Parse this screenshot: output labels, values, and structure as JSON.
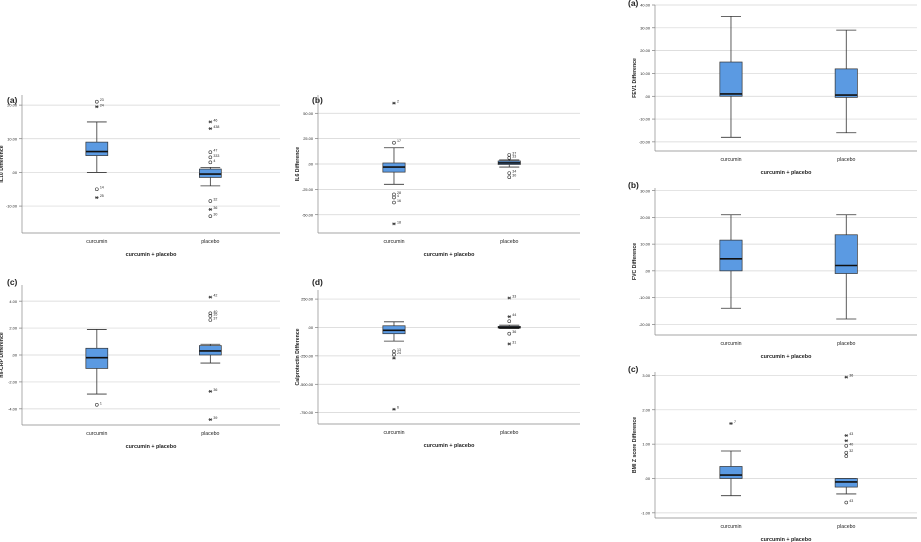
{
  "chart_data": [
    {
      "type": "boxplot",
      "id": "il10",
      "panel_label": "(a)",
      "ylabel": "IL10 Difference",
      "xlabel": "curcumin + placebo",
      "categories": [
        "curcumin",
        "placebo"
      ],
      "ylim": [
        -18,
        23
      ],
      "yticks": [
        -10,
        0,
        10,
        20
      ],
      "ytick_labels": [
        "-10.00",
        ".00",
        "10.00",
        "20.00"
      ],
      "boxes": [
        {
          "group": "curcumin",
          "whisker_low": 0.0,
          "q1": 5.0,
          "median": 6.2,
          "q3": 9.0,
          "whisker_high": 15.0,
          "outliers": [
            {
              "y": 21.0,
              "label": "23",
              "marker": "circle"
            },
            {
              "y": 19.5,
              "label": "24",
              "marker": "star"
            },
            {
              "y": -5.0,
              "label": "14",
              "marker": "circle"
            },
            {
              "y": -7.5,
              "label": "25",
              "marker": "star"
            }
          ]
        },
        {
          "group": "placebo",
          "whisker_low": -4.0,
          "q1": -1.5,
          "median": -0.5,
          "q3": 1.0,
          "whisker_high": 1.5,
          "outliers": [
            {
              "y": 15.0,
              "label": "46",
              "marker": "star"
            },
            {
              "y": 13.0,
              "label": "438",
              "marker": "star"
            },
            {
              "y": 6.0,
              "label": "47",
              "marker": "circle"
            },
            {
              "y": 4.5,
              "label": "333",
              "marker": "circle"
            },
            {
              "y": 3.0,
              "label": "4",
              "marker": "circle"
            },
            {
              "y": -8.5,
              "label": "32",
              "marker": "circle"
            },
            {
              "y": -11.0,
              "label": "36",
              "marker": "star"
            },
            {
              "y": -13.0,
              "label": "30",
              "marker": "circle"
            }
          ]
        }
      ]
    },
    {
      "type": "boxplot",
      "id": "il6",
      "panel_label": "(b)",
      "ylabel": "IL6 Difference",
      "xlabel": "curcumin + placebo",
      "categories": [
        "curcumin",
        "placebo"
      ],
      "ylim": [
        -68,
        68
      ],
      "yticks": [
        -50,
        -25,
        0,
        25,
        50
      ],
      "ytick_labels": [
        "-50.00",
        "-25.00",
        ".00",
        "25.00",
        "50.00"
      ],
      "boxes": [
        {
          "group": "curcumin",
          "whisker_low": -20.0,
          "q1": -8.0,
          "median": -3.0,
          "q3": 1.0,
          "whisker_high": 16.0,
          "outliers": [
            {
              "y": 60.0,
              "label": "2",
              "marker": "star"
            },
            {
              "y": 21.0,
              "label": "17",
              "marker": "circle"
            },
            {
              "y": -30.0,
              "label": "28",
              "marker": "circle"
            },
            {
              "y": -33.0,
              "label": "4",
              "marker": "circle"
            },
            {
              "y": -38.0,
              "label": "16",
              "marker": "circle"
            },
            {
              "y": -59.0,
              "label": "18",
              "marker": "star"
            }
          ]
        },
        {
          "group": "placebo",
          "whisker_low": -3.0,
          "q1": -0.5,
          "median": 1.0,
          "q3": 3.0,
          "whisker_high": 4.0,
          "outliers": [
            {
              "y": 9.0,
              "label": "37",
              "marker": "circle"
            },
            {
              "y": 6.0,
              "label": "33",
              "marker": "circle"
            },
            {
              "y": -9.0,
              "label": "34",
              "marker": "circle"
            },
            {
              "y": -13.0,
              "label": "30",
              "marker": "circle"
            }
          ]
        }
      ]
    },
    {
      "type": "boxplot",
      "id": "hscrp",
      "panel_label": "(c)",
      "ylabel": "hs-CRP Difference",
      "xlabel": "curcumin + placebo",
      "categories": [
        "curcumin",
        "placebo"
      ],
      "ylim": [
        -5.2,
        5.2
      ],
      "yticks": [
        -4,
        -2,
        0,
        2,
        4
      ],
      "ytick_labels": [
        "-4.00",
        "-2.00",
        ".00",
        "2.00",
        "4.00"
      ],
      "boxes": [
        {
          "group": "curcumin",
          "whisker_low": -2.9,
          "q1": -1.0,
          "median": -0.2,
          "q3": 0.5,
          "whisker_high": 1.9,
          "outliers": [
            {
              "y": -3.7,
              "label": "1",
              "marker": "circle"
            }
          ]
        },
        {
          "group": "placebo",
          "whisker_low": -0.6,
          "q1": 0.0,
          "median": 0.3,
          "q3": 0.7,
          "whisker_high": 0.8,
          "outliers": [
            {
              "y": 4.3,
              "label": "42",
              "marker": "star"
            },
            {
              "y": 3.1,
              "label": "40",
              "marker": "circle"
            },
            {
              "y": 2.9,
              "label": "35",
              "marker": "circle"
            },
            {
              "y": 2.6,
              "label": "37",
              "marker": "circle"
            },
            {
              "y": -2.7,
              "label": "36",
              "marker": "star"
            },
            {
              "y": -4.8,
              "label": "39",
              "marker": "star"
            }
          ]
        }
      ]
    },
    {
      "type": "boxplot",
      "id": "calprotectin",
      "panel_label": "(d)",
      "ylabel": "Calprotectin Difference",
      "xlabel": "curcumin + placebo",
      "categories": [
        "curcumin",
        "placebo"
      ],
      "ylim": [
        -850,
        330
      ],
      "yticks": [
        -750,
        -500,
        -250,
        0,
        250
      ],
      "ytick_labels": [
        "-750.00",
        "-500.00",
        "-250.00",
        ".00",
        "250.00"
      ],
      "boxes": [
        {
          "group": "curcumin",
          "whisker_low": -120,
          "q1": -55,
          "median": -25,
          "q3": 15,
          "whisker_high": 50,
          "outliers": [
            {
              "y": -210,
              "label": "13",
              "marker": "circle"
            },
            {
              "y": -240,
              "label": "24",
              "marker": "circle"
            },
            {
              "y": -270,
              "label": "",
              "marker": "star"
            },
            {
              "y": -720,
              "label": "6",
              "marker": "star"
            }
          ]
        },
        {
          "group": "placebo",
          "whisker_low": -10,
          "q1": -5,
          "median": 0,
          "q3": 10,
          "whisker_high": 20,
          "outliers": [
            {
              "y": 260,
              "label": "33",
              "marker": "star"
            },
            {
              "y": 95,
              "label": "44",
              "marker": "star"
            },
            {
              "y": 55,
              "label": "",
              "marker": "circle"
            },
            {
              "y": -55,
              "label": "36",
              "marker": "circle"
            },
            {
              "y": -145,
              "label": "31",
              "marker": "star"
            }
          ]
        }
      ]
    },
    {
      "type": "boxplot",
      "id": "fev1",
      "panel_label": "(a)",
      "ylabel": "FEV1 Difference",
      "xlabel": "curcumin + placebo",
      "categories": [
        "curcumin",
        "placebo"
      ],
      "ylim": [
        -24,
        40
      ],
      "yticks": [
        -20,
        -10,
        0,
        10,
        20,
        30,
        40
      ],
      "ytick_labels": [
        "-20.00",
        "-10.00",
        ".00",
        "10.00",
        "20.00",
        "30.00",
        "40.00"
      ],
      "boxes": [
        {
          "group": "curcumin",
          "whisker_low": -18,
          "q1": 0,
          "median": 1,
          "q3": 15,
          "whisker_high": 35,
          "outliers": []
        },
        {
          "group": "placebo",
          "whisker_low": -16,
          "q1": -0.5,
          "median": 0.5,
          "q3": 12,
          "whisker_high": 29,
          "outliers": []
        }
      ]
    },
    {
      "type": "boxplot",
      "id": "fvc",
      "panel_label": "(b)",
      "ylabel": "FVC Difference",
      "xlabel": "curcumin + placebo",
      "categories": [
        "curcumin",
        "placebo"
      ],
      "ylim": [
        -24,
        31
      ],
      "yticks": [
        -20,
        -10,
        0,
        10,
        20,
        30
      ],
      "ytick_labels": [
        "-20.00",
        "-10.00",
        ".00",
        "10.00",
        "20.00",
        "30.00"
      ],
      "boxes": [
        {
          "group": "curcumin",
          "whisker_low": -14,
          "q1": 0,
          "median": 4.5,
          "q3": 11.5,
          "whisker_high": 21,
          "outliers": []
        },
        {
          "group": "placebo",
          "whisker_low": -18,
          "q1": -1,
          "median": 2,
          "q3": 13.5,
          "whisker_high": 21,
          "outliers": []
        }
      ]
    },
    {
      "type": "boxplot",
      "id": "bmi",
      "panel_label": "(c)",
      "ylabel": "BMI Z score Difference",
      "xlabel": "curcumin + placebo",
      "categories": [
        "curcumin",
        "placebo"
      ],
      "ylim": [
        -1.15,
        3.1
      ],
      "yticks": [
        -1,
        0,
        1,
        2,
        3
      ],
      "ytick_labels": [
        "-1.00",
        ".00",
        "1.00",
        "2.00",
        "3.00"
      ],
      "boxes": [
        {
          "group": "curcumin",
          "whisker_low": -0.5,
          "q1": 0.0,
          "median": 0.1,
          "q3": 0.35,
          "whisker_high": 0.8,
          "outliers": [
            {
              "y": 1.6,
              "label": "7",
              "marker": "star"
            }
          ]
        },
        {
          "group": "placebo",
          "whisker_low": -0.45,
          "q1": -0.25,
          "median": -0.1,
          "q3": 0.0,
          "whisker_high": 0.0,
          "outliers": [
            {
              "y": 2.95,
              "label": "36",
              "marker": "star"
            },
            {
              "y": 1.25,
              "label": "43",
              "marker": "star"
            },
            {
              "y": 1.1,
              "label": "",
              "marker": "star"
            },
            {
              "y": 0.95,
              "label": "40",
              "marker": "circle"
            },
            {
              "y": 0.75,
              "label": "32",
              "marker": "circle"
            },
            {
              "y": 0.65,
              "label": "",
              "marker": "circle"
            },
            {
              "y": -0.7,
              "label": "43",
              "marker": "circle"
            }
          ]
        }
      ]
    }
  ]
}
